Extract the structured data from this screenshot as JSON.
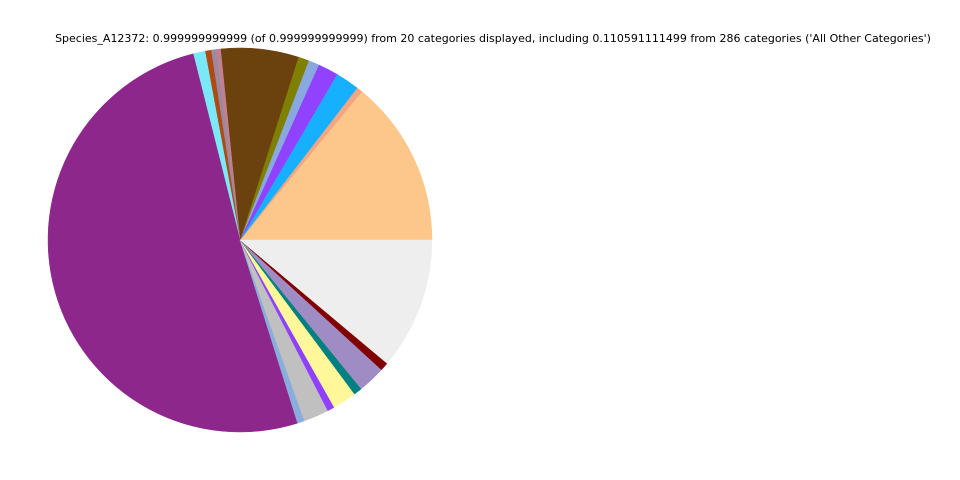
{
  "chart_data": {
    "type": "pie",
    "title": "Species_A12372: 0.999999999999 (of 0.999999999999) from 20 categories displayed, including 0.110591111499 from 286 categories ('All Other Categories')",
    "values": [
      0.14,
      0.005,
      0.02,
      0.017,
      0.009,
      0.009,
      0.065,
      0.004,
      0.004,
      0.005,
      0.01,
      0.507,
      0.006,
      0.021,
      0.006,
      0.02,
      0.007,
      0.023,
      0.007,
      0.1106
    ],
    "colors": [
      "#fdc68a",
      "#f4a582",
      "#16b0ff",
      "#9042ff",
      "#8aa8e0",
      "#808000",
      "#6b420e",
      "#c08090",
      "#9a8aa0",
      "#b04a10",
      "#7ae8f6",
      "#8e278c",
      "#8aaedc",
      "#c0c0c0",
      "#9040ff",
      "#fff799",
      "#008080",
      "#a08cc4",
      "#800000",
      "#eeeeee"
    ],
    "start_angle": 0,
    "counterclock": true
  }
}
